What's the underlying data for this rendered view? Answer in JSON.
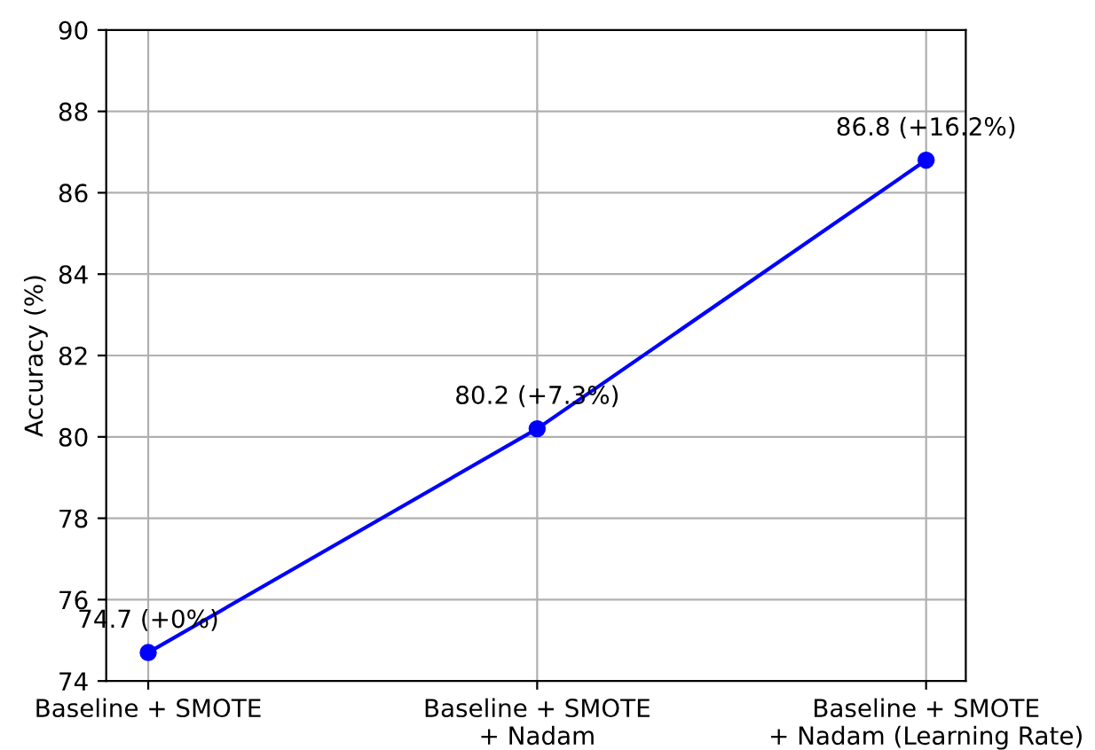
{
  "chart_data": {
    "type": "line",
    "ylabel": "Accuracy (%)",
    "categories": [
      "Baseline + SMOTE",
      "Baseline + SMOTE\n+ Nadam",
      "Baseline + SMOTE\n+ Nadam (Learning Rate)"
    ],
    "series": [
      {
        "color": "#0000ff",
        "values": [
          74.7,
          80.2,
          86.8
        ],
        "value_labels": [
          "74.7 (+0%)",
          "80.2 (+7.3%)",
          "86.8 (+16.2%)"
        ]
      }
    ],
    "ylim": [
      74,
      90
    ],
    "yticks": [
      74,
      76,
      78,
      80,
      82,
      84,
      86,
      88,
      90
    ],
    "grid": true,
    "marker": "circle",
    "line_style": "solid"
  }
}
